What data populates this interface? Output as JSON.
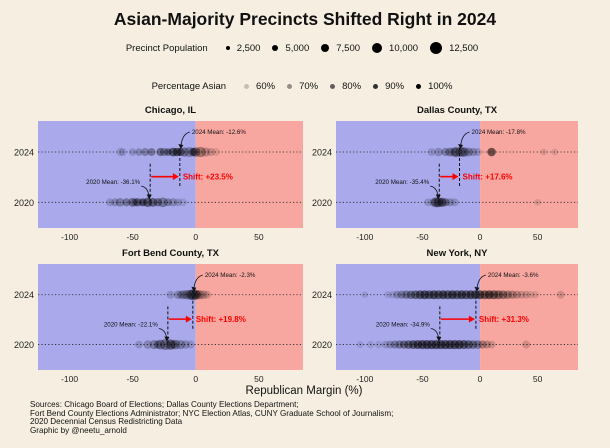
{
  "title": "Asian-Majority Precincts Shifted Right in 2024",
  "legend_size": {
    "title": "Precinct Population",
    "items": [
      {
        "label": "2,500",
        "value": 2500
      },
      {
        "label": "5,000",
        "value": 5000
      },
      {
        "label": "7,500",
        "value": 7500
      },
      {
        "label": "10,000",
        "value": 10000
      },
      {
        "label": "12,500",
        "value": 12500
      }
    ]
  },
  "legend_alpha": {
    "title": "Percentage Asian",
    "items": [
      {
        "label": "60%",
        "opacity": 0.2
      },
      {
        "label": "70%",
        "opacity": 0.4
      },
      {
        "label": "80%",
        "opacity": 0.6
      },
      {
        "label": "90%",
        "opacity": 0.8
      },
      {
        "label": "100%",
        "opacity": 1.0
      }
    ]
  },
  "colors": {
    "background": "#f6efe1",
    "dem_region": "#a9a9ec",
    "rep_region": "#f8a7a0",
    "shift": "#ff0000",
    "points": "#000000"
  },
  "x_axis_label": "Republican Margin (%)",
  "chart_data": [
    {
      "type": "scatter",
      "title": "Chicago, IL",
      "xlim": [
        -125,
        85
      ],
      "xticks": [
        -100,
        -50,
        0,
        50
      ],
      "yticks": [
        "2024",
        "2020"
      ],
      "xlabel": "Republican Margin (%)",
      "mean_2020": -36.1,
      "mean_2024": -12.6,
      "mean_2020_label": "2020 Mean: -36.1%",
      "mean_2024_label": "2024 Mean: -12.6%",
      "shift_label": "Shift: +23.5%",
      "points_2024": [
        [
          -60,
          3000,
          0.2
        ],
        [
          -58,
          2500,
          0.3
        ],
        [
          -45,
          2200,
          0.4
        ],
        [
          -40,
          2600,
          0.5
        ],
        [
          -35,
          2400,
          0.6
        ],
        [
          -28,
          2800,
          0.7
        ],
        [
          -22,
          2000,
          0.8
        ],
        [
          -18,
          3500,
          0.9
        ],
        [
          -15,
          3000,
          1.0
        ],
        [
          -12,
          2600,
          0.8
        ],
        [
          -9,
          4000,
          0.6
        ],
        [
          -5,
          5200,
          0.5
        ],
        [
          0,
          4500,
          0.7
        ],
        [
          4,
          5500,
          0.6
        ],
        [
          8,
          3800,
          0.4
        ],
        [
          12,
          3000,
          0.3
        ],
        [
          16,
          2600,
          0.2
        ],
        [
          -50,
          2200,
          0.3
        ],
        [
          -25,
          3000,
          0.5
        ],
        [
          -2,
          3000,
          0.9
        ]
      ],
      "points_2020": [
        [
          -68,
          2500,
          0.3
        ],
        [
          -60,
          3200,
          0.5
        ],
        [
          -55,
          2600,
          0.6
        ],
        [
          -50,
          3600,
          0.7
        ],
        [
          -46,
          3000,
          0.8
        ],
        [
          -42,
          2500,
          1.0
        ],
        [
          -38,
          4200,
          0.9
        ],
        [
          -34,
          3500,
          0.8
        ],
        [
          -30,
          3000,
          0.7
        ],
        [
          -26,
          4600,
          0.6
        ],
        [
          -22,
          2500,
          0.5
        ],
        [
          -18,
          3000,
          0.4
        ],
        [
          -14,
          2400,
          0.3
        ],
        [
          -10,
          2600,
          0.2
        ],
        [
          -64,
          2400,
          0.4
        ],
        [
          -48,
          2200,
          0.5
        ]
      ]
    },
    {
      "type": "scatter",
      "title": "Dallas County, TX",
      "xlim": [
        -125,
        85
      ],
      "xticks": [
        -100,
        -50,
        0,
        50
      ],
      "yticks": [
        "2024",
        "2020"
      ],
      "xlabel": "Republican Margin (%)",
      "mean_2020": -35.4,
      "mean_2024": -17.8,
      "mean_2020_label": "2020 Mean: -35.4%",
      "mean_2024_label": "2024 Mean: -17.8%",
      "shift_label": "Shift: +17.6%",
      "points_2024": [
        [
          -42,
          2500,
          0.3
        ],
        [
          -36,
          3200,
          0.4
        ],
        [
          -30,
          2800,
          0.5
        ],
        [
          -26,
          3500,
          0.6
        ],
        [
          -22,
          4200,
          0.7
        ],
        [
          -20,
          5500,
          0.5
        ],
        [
          -17,
          5000,
          0.6
        ],
        [
          -14,
          4400,
          0.8
        ],
        [
          -10,
          3500,
          0.5
        ],
        [
          -6,
          3000,
          0.4
        ],
        [
          10,
          3200,
          1.0
        ],
        [
          55,
          1500,
          0.2
        ],
        [
          65,
          1500,
          0.2
        ],
        [
          -2,
          2500,
          0.3
        ]
      ],
      "points_2020": [
        [
          -45,
          2500,
          0.3
        ],
        [
          -40,
          3400,
          0.5
        ],
        [
          -38,
          5200,
          0.7
        ],
        [
          -36,
          4600,
          0.8
        ],
        [
          -33,
          3800,
          0.9
        ],
        [
          -30,
          3000,
          0.6
        ],
        [
          -26,
          2600,
          0.4
        ],
        [
          -22,
          2500,
          0.3
        ],
        [
          50,
          1500,
          0.2
        ]
      ]
    },
    {
      "type": "scatter",
      "title": "Fort Bend County, TX",
      "xlim": [
        -125,
        85
      ],
      "xticks": [
        -100,
        -50,
        0,
        50
      ],
      "yticks": [
        "2024",
        "2020"
      ],
      "xlabel": "Republican Margin (%)",
      "mean_2020": -22.1,
      "mean_2024": -2.3,
      "mean_2020_label": "2020 Mean: -22.1%",
      "mean_2024_label": "2024 Mean: -2.3%",
      "shift_label": "Shift: +19.8%",
      "points_2024": [
        [
          -20,
          2600,
          0.3
        ],
        [
          -14,
          3200,
          0.4
        ],
        [
          -10,
          3800,
          0.5
        ],
        [
          -7,
          4200,
          0.6
        ],
        [
          -4,
          5200,
          0.7
        ],
        [
          -2,
          6200,
          0.8
        ],
        [
          0,
          5200,
          0.6
        ],
        [
          3,
          4400,
          0.5
        ],
        [
          6,
          3500,
          0.4
        ],
        [
          9,
          2600,
          0.3
        ],
        [
          -12,
          2500,
          0.3
        ],
        [
          1,
          3000,
          0.5
        ]
      ],
      "points_2020": [
        [
          -45,
          2500,
          0.3
        ],
        [
          -38,
          3200,
          0.4
        ],
        [
          -33,
          4000,
          0.5
        ],
        [
          -28,
          5000,
          0.6
        ],
        [
          -24,
          6200,
          0.7
        ],
        [
          -20,
          5500,
          0.8
        ],
        [
          -16,
          4600,
          0.6
        ],
        [
          -12,
          4000,
          0.5
        ],
        [
          -8,
          3200,
          0.4
        ],
        [
          -4,
          2600,
          0.3
        ],
        [
          -30,
          2800,
          0.5
        ],
        [
          -18,
          3000,
          0.5
        ]
      ]
    },
    {
      "type": "scatter",
      "title": "New York, NY",
      "xlim": [
        -125,
        85
      ],
      "xticks": [
        -100,
        -50,
        0,
        50
      ],
      "yticks": [
        "2024",
        "2020"
      ],
      "xlabel": "Republican Margin (%)",
      "mean_2020": -34.9,
      "mean_2024": -3.6,
      "mean_2020_label": "2020 Mean: -34.9%",
      "mean_2024_label": "2024 Mean: -3.6%",
      "shift_label": "Shift: +31.3%",
      "points_2024": [
        [
          -72,
          2500,
          0.4
        ],
        [
          -68,
          2800,
          0.5
        ],
        [
          -64,
          3000,
          0.6
        ],
        [
          -60,
          3200,
          0.7
        ],
        [
          -56,
          3400,
          0.8
        ],
        [
          -52,
          3600,
          0.9
        ],
        [
          -48,
          3800,
          1.0
        ],
        [
          -44,
          3500,
          0.9
        ],
        [
          -40,
          3800,
          1.0
        ],
        [
          -36,
          3600,
          0.9
        ],
        [
          -32,
          3600,
          1.0
        ],
        [
          -28,
          3800,
          0.9
        ],
        [
          -24,
          3600,
          1.0
        ],
        [
          -20,
          3800,
          0.9
        ],
        [
          -16,
          3600,
          1.0
        ],
        [
          -12,
          3800,
          0.9
        ],
        [
          -8,
          3600,
          1.0
        ],
        [
          -4,
          3800,
          0.9
        ],
        [
          0,
          3600,
          1.0
        ],
        [
          4,
          3800,
          0.9
        ],
        [
          8,
          3600,
          1.0
        ],
        [
          12,
          3800,
          0.9
        ],
        [
          16,
          3600,
          0.8
        ],
        [
          20,
          3400,
          0.7
        ],
        [
          24,
          3200,
          0.6
        ],
        [
          28,
          3000,
          0.5
        ],
        [
          32,
          2800,
          0.4
        ],
        [
          36,
          2600,
          0.3
        ],
        [
          40,
          2500,
          0.3
        ],
        [
          44,
          2200,
          0.2
        ],
        [
          48,
          2000,
          0.2
        ],
        [
          70,
          2500,
          0.3
        ],
        [
          -76,
          2000,
          0.2
        ],
        [
          -80,
          1800,
          0.2
        ],
        [
          -100,
          1500,
          0.2
        ]
      ],
      "points_2020": [
        [
          -95,
          2000,
          0.2
        ],
        [
          -88,
          2200,
          0.2
        ],
        [
          -82,
          2300,
          0.3
        ],
        [
          -78,
          2500,
          0.4
        ],
        [
          -74,
          2700,
          0.5
        ],
        [
          -70,
          2900,
          0.6
        ],
        [
          -66,
          3100,
          0.7
        ],
        [
          -62,
          3300,
          0.8
        ],
        [
          -58,
          3500,
          0.9
        ],
        [
          -54,
          3700,
          1.0
        ],
        [
          -50,
          3900,
          1.0
        ],
        [
          -46,
          4000,
          1.0
        ],
        [
          -42,
          4000,
          1.0
        ],
        [
          -38,
          4000,
          1.0
        ],
        [
          -34,
          4000,
          1.0
        ],
        [
          -30,
          4000,
          1.0
        ],
        [
          -26,
          4000,
          1.0
        ],
        [
          -22,
          4000,
          1.0
        ],
        [
          -18,
          3900,
          1.0
        ],
        [
          -14,
          3800,
          0.9
        ],
        [
          -10,
          3600,
          0.8
        ],
        [
          -6,
          3400,
          0.7
        ],
        [
          -2,
          3200,
          0.6
        ],
        [
          2,
          3000,
          0.5
        ],
        [
          6,
          2700,
          0.4
        ],
        [
          10,
          2500,
          0.3
        ],
        [
          40,
          2600,
          0.3
        ],
        [
          -104,
          1500,
          0.2
        ]
      ]
    }
  ],
  "sources": [
    "Sources: Chicago Board of Elections; Dallas County Elections Department;",
    "Fort Bend County Elections Administrator; NYC Election Atlas, CUNY Graduate School of Journalism;",
    "2020 Decennial Census Redistricting Data",
    "Graphic by @neetu_arnold"
  ]
}
